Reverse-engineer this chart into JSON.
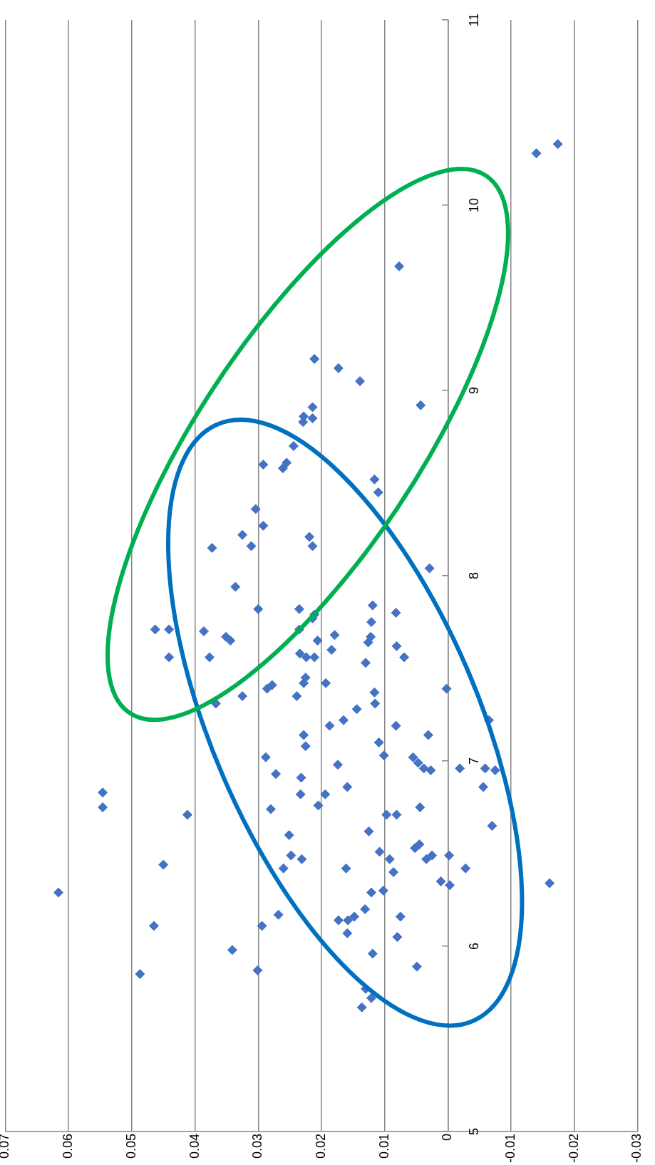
{
  "chart_data": {
    "type": "scatter",
    "x": [
      -0.0174,
      -0.014,
      0.0077,
      0.0211,
      0.0173,
      0.0139,
      0.0043,
      0.0214,
      0.0214,
      0.0228,
      0.0229,
      0.0244,
      0.0255,
      0.0292,
      0.0261,
      0.0116,
      0.011,
      0.0304,
      0.0292,
      0.0325,
      0.0219,
      0.0311,
      0.0373,
      0.0214,
      0.0029,
      0.0336,
      0.03,
      0.0235,
      0.0119,
      0.0082,
      0.0211,
      0.0214,
      0.0121,
      0.0463,
      0.0441,
      0.0386,
      0.0235,
      0.0179,
      0.0122,
      0.0351,
      0.0344,
      0.0206,
      0.0126,
      0.0081,
      0.0184,
      0.0441,
      0.0377,
      0.0234,
      0.0224,
      0.0211,
      0.0069,
      0.013,
      0.0278,
      0.0286,
      0.0225,
      0.0228,
      0.0193,
      0.0002,
      0.0116,
      0.0325,
      0.0239,
      0.0367,
      0.0115,
      0.0144,
      -0.0065,
      0.0165,
      0.0187,
      0.0082,
      0.0228,
      0.0031,
      0.0225,
      0.0109,
      0.0101,
      0.0288,
      0.0055,
      0.0047,
      0.0174,
      -0.0019,
      -0.0059,
      -0.0075,
      0.0038,
      0.0027,
      0.0272,
      0.0232,
      -0.0056,
      0.0159,
      0.0546,
      0.0233,
      0.0194,
      0.0205,
      0.0546,
      0.0044,
      0.028,
      0.0412,
      0.0097,
      0.0081,
      -0.007,
      0.0125,
      0.0251,
      0.0045,
      0.0052,
      0.0108,
      0.0248,
      -0.0002,
      0.0092,
      0.0231,
      0.0025,
      0.0034,
      0.045,
      0.026,
      0.0161,
      -0.0028,
      0.0086,
      0.0011,
      -0.0161,
      -0.0003,
      0.0616,
      0.0121,
      0.0102,
      0.0131,
      0.0268,
      0.0148,
      0.0075,
      0.0158,
      0.0173,
      0.0465,
      0.0294,
      0.0159,
      0.008,
      0.0341,
      0.0119,
      0.0049,
      0.0301,
      0.0487,
      0.013,
      0.0121,
      0.0136
    ],
    "values": [
      10.33,
      10.28,
      9.67,
      9.17,
      9.12,
      9.05,
      8.92,
      8.91,
      8.85,
      8.86,
      8.83,
      8.7,
      8.61,
      8.6,
      8.58,
      8.52,
      8.45,
      8.36,
      8.27,
      8.22,
      8.21,
      8.16,
      8.15,
      8.16,
      8.04,
      7.94,
      7.82,
      7.82,
      7.84,
      7.8,
      7.79,
      7.77,
      7.75,
      7.71,
      7.71,
      7.7,
      7.71,
      7.68,
      7.67,
      7.67,
      7.65,
      7.65,
      7.64,
      7.62,
      7.6,
      7.56,
      7.56,
      7.58,
      7.56,
      7.56,
      7.56,
      7.53,
      7.41,
      7.39,
      7.45,
      7.42,
      7.42,
      7.39,
      7.37,
      7.35,
      7.35,
      7.31,
      7.31,
      7.28,
      7.22,
      7.22,
      7.19,
      7.19,
      7.14,
      7.14,
      7.08,
      7.1,
      7.03,
      7.02,
      7.02,
      6.99,
      6.98,
      6.96,
      6.96,
      6.95,
      6.96,
      6.95,
      6.93,
      6.91,
      6.86,
      6.86,
      6.83,
      6.82,
      6.82,
      6.76,
      6.75,
      6.75,
      6.74,
      6.71,
      6.71,
      6.71,
      6.65,
      6.62,
      6.6,
      6.55,
      6.53,
      6.51,
      6.49,
      6.49,
      6.47,
      6.47,
      6.49,
      6.47,
      6.44,
      6.42,
      6.42,
      6.42,
      6.4,
      6.35,
      6.34,
      6.33,
      6.29,
      6.29,
      6.3,
      6.2,
      6.17,
      6.16,
      6.16,
      6.14,
      6.14,
      6.11,
      6.11,
      6.07,
      6.05,
      5.98,
      5.96,
      5.89,
      5.87,
      5.85,
      5.77,
      5.72,
      5.67
    ],
    "color": "#4472c4",
    "marker": "diamond",
    "xlim": [
      0.07,
      -0.03
    ],
    "xticks": [
      0.07,
      0.06,
      0.05,
      0.04,
      0.03,
      0.02,
      0.01,
      0,
      -0.01,
      -0.02,
      -0.03
    ],
    "ylim": [
      5,
      11
    ],
    "yticks": [
      5,
      6,
      7,
      8,
      9,
      10,
      11
    ],
    "grid": "x",
    "legend": false
  }
}
